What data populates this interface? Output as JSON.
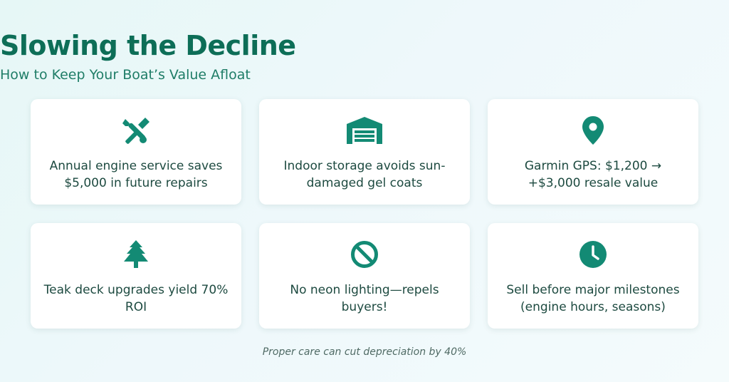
{
  "header": {
    "title": "Slowing the Decline",
    "subtitle": "How to Keep Your Boat’s Value Afloat"
  },
  "accent_color": "#138a74",
  "cards": [
    {
      "icon": "tools-icon",
      "text": "Annual engine service saves $5,000 in future repairs"
    },
    {
      "icon": "garage-icon",
      "text": "Indoor storage avoids sun-damaged gel coats"
    },
    {
      "icon": "map-pin-icon",
      "text": "Garmin GPS: $1,200 → +$3,000 resale value"
    },
    {
      "icon": "tree-icon",
      "text": "Teak deck upgrades yield 70% ROI"
    },
    {
      "icon": "ban-icon",
      "text": "No neon lighting—repels buyers!"
    },
    {
      "icon": "clock-icon",
      "text": "Sell before major milestones (engine hours, seasons)"
    }
  ],
  "footer": {
    "note": "Proper care can cut depreciation by 40%"
  }
}
